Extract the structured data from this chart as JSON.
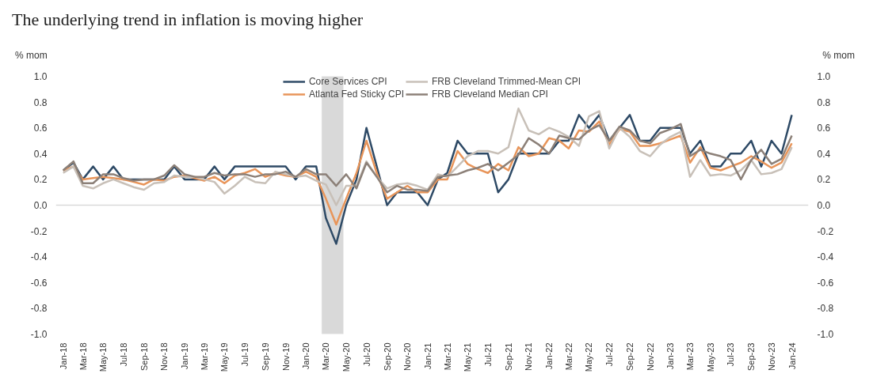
{
  "chart_data": {
    "type": "line",
    "title": "The underlying trend in inflation is moving higher",
    "ylabel": "% mom",
    "y2label": "% mom",
    "x": [
      "2018-01",
      "2018-02",
      "2018-03",
      "2018-04",
      "2018-05",
      "2018-06",
      "2018-07",
      "2018-08",
      "2018-09",
      "2018-10",
      "2018-11",
      "2018-12",
      "2019-01",
      "2019-02",
      "2019-03",
      "2019-04",
      "2019-05",
      "2019-06",
      "2019-07",
      "2019-08",
      "2019-09",
      "2019-10",
      "2019-11",
      "2019-12",
      "2020-01",
      "2020-02",
      "2020-03",
      "2020-04",
      "2020-05",
      "2020-06",
      "2020-07",
      "2020-08",
      "2020-09",
      "2020-10",
      "2020-11",
      "2020-12",
      "2021-01",
      "2021-02",
      "2021-03",
      "2021-04",
      "2021-05",
      "2021-06",
      "2021-07",
      "2021-08",
      "2021-09",
      "2021-10",
      "2021-11",
      "2021-12",
      "2022-01",
      "2022-02",
      "2022-03",
      "2022-04",
      "2022-05",
      "2022-06",
      "2022-07",
      "2022-08",
      "2022-09",
      "2022-10",
      "2022-11",
      "2022-12",
      "2023-01",
      "2023-02",
      "2023-03",
      "2023-04",
      "2023-05",
      "2023-06",
      "2023-07",
      "2023-08",
      "2023-09",
      "2023-10",
      "2023-11",
      "2023-12",
      "2024-01"
    ],
    "series": [
      {
        "name": "Core Services CPI",
        "color": "#2e4a66",
        "values": [
          0.27,
          0.33,
          0.2,
          0.3,
          0.2,
          0.3,
          0.2,
          0.2,
          0.2,
          0.2,
          0.2,
          0.3,
          0.2,
          0.2,
          0.2,
          0.3,
          0.2,
          0.3,
          0.3,
          0.3,
          0.3,
          0.3,
          0.3,
          0.2,
          0.3,
          0.3,
          -0.1,
          -0.3,
          0.0,
          0.2,
          0.6,
          0.3,
          0.0,
          0.1,
          0.1,
          0.1,
          0.0,
          0.2,
          0.25,
          0.5,
          0.4,
          0.4,
          0.4,
          0.1,
          0.2,
          0.4,
          0.4,
          0.4,
          0.4,
          0.5,
          0.5,
          0.7,
          0.6,
          0.7,
          0.5,
          0.6,
          0.7,
          0.5,
          0.5,
          0.6,
          0.6,
          0.6,
          0.4,
          0.5,
          0.3,
          0.3,
          0.4,
          0.4,
          0.5,
          0.3,
          0.5,
          0.4,
          0.7
        ]
      },
      {
        "name": "Atlanta Fed Sticky CPI",
        "color": "#e8955a",
        "values": [
          0.27,
          0.3,
          0.2,
          0.21,
          0.22,
          0.21,
          0.2,
          0.18,
          0.16,
          0.2,
          0.19,
          0.22,
          0.23,
          0.21,
          0.19,
          0.22,
          0.17,
          0.23,
          0.25,
          0.28,
          0.22,
          0.25,
          0.23,
          0.22,
          0.26,
          0.22,
          0.05,
          -0.15,
          0.05,
          0.25,
          0.5,
          0.25,
          0.05,
          0.1,
          0.15,
          0.1,
          0.1,
          0.2,
          0.2,
          0.42,
          0.32,
          0.28,
          0.25,
          0.32,
          0.27,
          0.45,
          0.38,
          0.4,
          0.52,
          0.5,
          0.44,
          0.58,
          0.57,
          0.65,
          0.47,
          0.59,
          0.57,
          0.46,
          0.46,
          0.48,
          0.51,
          0.54,
          0.33,
          0.45,
          0.29,
          0.27,
          0.3,
          0.33,
          0.38,
          0.34,
          0.29,
          0.33,
          0.48
        ]
      },
      {
        "name": "FRB Cleveland Trimmed-Mean CPI",
        "color": "#c8c0b8",
        "values": [
          0.25,
          0.3,
          0.15,
          0.13,
          0.17,
          0.2,
          0.17,
          0.14,
          0.12,
          0.17,
          0.18,
          0.23,
          0.22,
          0.22,
          0.2,
          0.18,
          0.09,
          0.15,
          0.22,
          0.18,
          0.17,
          0.26,
          0.24,
          0.22,
          0.23,
          0.19,
          0.16,
          0.0,
          0.15,
          0.15,
          0.34,
          0.22,
          0.13,
          0.16,
          0.17,
          0.15,
          0.12,
          0.24,
          0.22,
          0.3,
          0.38,
          0.42,
          0.42,
          0.4,
          0.45,
          0.75,
          0.58,
          0.55,
          0.6,
          0.57,
          0.53,
          0.46,
          0.69,
          0.73,
          0.44,
          0.6,
          0.53,
          0.42,
          0.38,
          0.47,
          0.53,
          0.57,
          0.22,
          0.35,
          0.23,
          0.24,
          0.23,
          0.27,
          0.35,
          0.24,
          0.25,
          0.28,
          0.45
        ]
      },
      {
        "name": "FRB Cleveland Median CPI",
        "color": "#8c8078",
        "values": [
          0.27,
          0.34,
          0.17,
          0.17,
          0.24,
          0.24,
          0.21,
          0.19,
          0.2,
          0.2,
          0.23,
          0.31,
          0.24,
          0.22,
          0.22,
          0.25,
          0.23,
          0.24,
          0.24,
          0.22,
          0.24,
          0.24,
          0.26,
          0.22,
          0.28,
          0.24,
          0.24,
          0.15,
          0.24,
          0.13,
          0.33,
          0.22,
          0.1,
          0.15,
          0.12,
          0.12,
          0.11,
          0.22,
          0.23,
          0.24,
          0.27,
          0.29,
          0.32,
          0.27,
          0.33,
          0.39,
          0.52,
          0.47,
          0.4,
          0.54,
          0.52,
          0.51,
          0.58,
          0.62,
          0.5,
          0.61,
          0.58,
          0.5,
          0.48,
          0.56,
          0.59,
          0.63,
          0.38,
          0.43,
          0.4,
          0.38,
          0.35,
          0.2,
          0.35,
          0.43,
          0.32,
          0.36,
          0.54
        ]
      }
    ],
    "xlim": [
      "2017-12-10",
      "2024-02-20"
    ],
    "xticks": [
      {
        "value": "2018-01",
        "label": "Jan-18"
      },
      {
        "value": "2018-03",
        "label": "Mar-18"
      },
      {
        "value": "2018-05",
        "label": "May-18"
      },
      {
        "value": "2018-07",
        "label": "Jul-18"
      },
      {
        "value": "2018-09",
        "label": "Sep-18"
      },
      {
        "value": "2018-11",
        "label": "Nov-18"
      },
      {
        "value": "2019-01",
        "label": "Jan-19"
      },
      {
        "value": "2019-03",
        "label": "Mar-19"
      },
      {
        "value": "2019-05",
        "label": "May-19"
      },
      {
        "value": "2019-07",
        "label": "Jul-19"
      },
      {
        "value": "2019-09",
        "label": "Sep-19"
      },
      {
        "value": "2019-11",
        "label": "Nov-19"
      },
      {
        "value": "2020-01",
        "label": "Jan-20"
      },
      {
        "value": "2020-03",
        "label": "Mar-20"
      },
      {
        "value": "2020-05",
        "label": "May-20"
      },
      {
        "value": "2020-07",
        "label": "Jul-20"
      },
      {
        "value": "2020-09",
        "label": "Sep-20"
      },
      {
        "value": "2020-11",
        "label": "Nov-20"
      },
      {
        "value": "2021-01",
        "label": "Jan-21"
      },
      {
        "value": "2021-03",
        "label": "Mar-21"
      },
      {
        "value": "2021-05",
        "label": "May-21"
      },
      {
        "value": "2021-07",
        "label": "Jul-21"
      },
      {
        "value": "2021-09",
        "label": "Sep-21"
      },
      {
        "value": "2021-11",
        "label": "Nov-21"
      },
      {
        "value": "2022-01",
        "label": "Jan-22"
      },
      {
        "value": "2022-03",
        "label": "Mar-22"
      },
      {
        "value": "2022-05",
        "label": "May-22"
      },
      {
        "value": "2022-07",
        "label": "Jul-22"
      },
      {
        "value": "2022-09",
        "label": "Sep-22"
      },
      {
        "value": "2022-11",
        "label": "Nov-22"
      },
      {
        "value": "2023-01",
        "label": "Jan-23"
      },
      {
        "value": "2023-03",
        "label": "Mar-23"
      },
      {
        "value": "2023-05",
        "label": "May-23"
      },
      {
        "value": "2023-07",
        "label": "Jul-23"
      },
      {
        "value": "2023-09",
        "label": "Sep-23"
      },
      {
        "value": "2023-11",
        "label": "Nov-23"
      },
      {
        "value": "2024-01",
        "label": "Jan-24"
      }
    ],
    "ylim": [
      -1.0,
      1.0
    ],
    "yticks": [
      {
        "value": -1.0,
        "label": "-1.0"
      },
      {
        "value": -0.8,
        "label": "-0.8"
      },
      {
        "value": -0.6,
        "label": "-0.6"
      },
      {
        "value": -0.4,
        "label": "-0.4"
      },
      {
        "value": -0.2,
        "label": "-0.2"
      },
      {
        "value": 0.0,
        "label": "0.0"
      },
      {
        "value": 0.2,
        "label": "0.2"
      },
      {
        "value": 0.4,
        "label": "0.4"
      },
      {
        "value": 0.6,
        "label": "0.6"
      },
      {
        "value": 0.8,
        "label": "0.8"
      },
      {
        "value": 1.0,
        "label": "1.0"
      }
    ],
    "y2lim": [
      -1.0,
      1.0
    ],
    "y2ticks": [
      {
        "value": -1.0,
        "label": "-1.0"
      },
      {
        "value": -0.8,
        "label": "-0.8"
      },
      {
        "value": -0.6,
        "label": "-0.6"
      },
      {
        "value": -0.4,
        "label": "-0.4"
      },
      {
        "value": -0.2,
        "label": "-0.2"
      },
      {
        "value": 0.0,
        "label": "0.0"
      },
      {
        "value": 0.2,
        "label": "0.2"
      },
      {
        "value": 0.4,
        "label": "0.4"
      },
      {
        "value": 0.6,
        "label": "0.6"
      },
      {
        "value": 0.8,
        "label": "0.8"
      },
      {
        "value": 1.0,
        "label": "1.0"
      }
    ],
    "bands": [
      {
        "axis": "x",
        "from": "2020-02-18",
        "to": "2020-04-22",
        "color": "#d9d9d9"
      }
    ],
    "ref_lines": [
      {
        "axis": "y",
        "value": 0,
        "color": "#d9d9d9",
        "line_style": "solid"
      }
    ],
    "legend": "top",
    "grid": false,
    "line_style": "solid",
    "marker": "none"
  }
}
